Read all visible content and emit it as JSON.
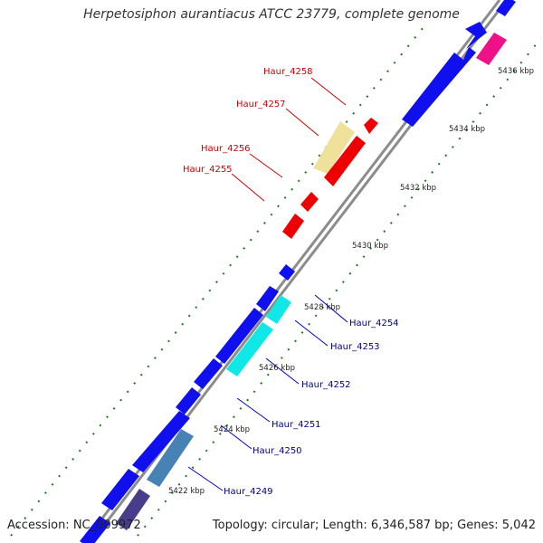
{
  "title": "Herpetosiphon aurantiacus ATCC 23779, complete genome",
  "footer": {
    "accession": "Accession: NC_009972",
    "summary": "Topology: circular; Length: 6,346,587 bp; Genes: 5,042"
  },
  "colors": {
    "backbone": "#8c8c8c",
    "tick": "#1a7a1a",
    "label_red": "#cc0000",
    "label_blue": "#00008b"
  },
  "ticks": [
    "5422 kbp",
    "5424 kbp",
    "5426 kbp",
    "5428 kbp",
    "5430 kbp",
    "5432 kbp",
    "5434 kbp",
    "5436 kbp"
  ],
  "loci_upper": [
    "Haur_4258",
    "Haur_4257",
    "Haur_4256",
    "Haur_4255"
  ],
  "loci_lower": [
    "Haur_4254",
    "Haur_4253",
    "Haur_4252",
    "Haur_4251",
    "Haur_4250",
    "Haur_4249"
  ]
}
